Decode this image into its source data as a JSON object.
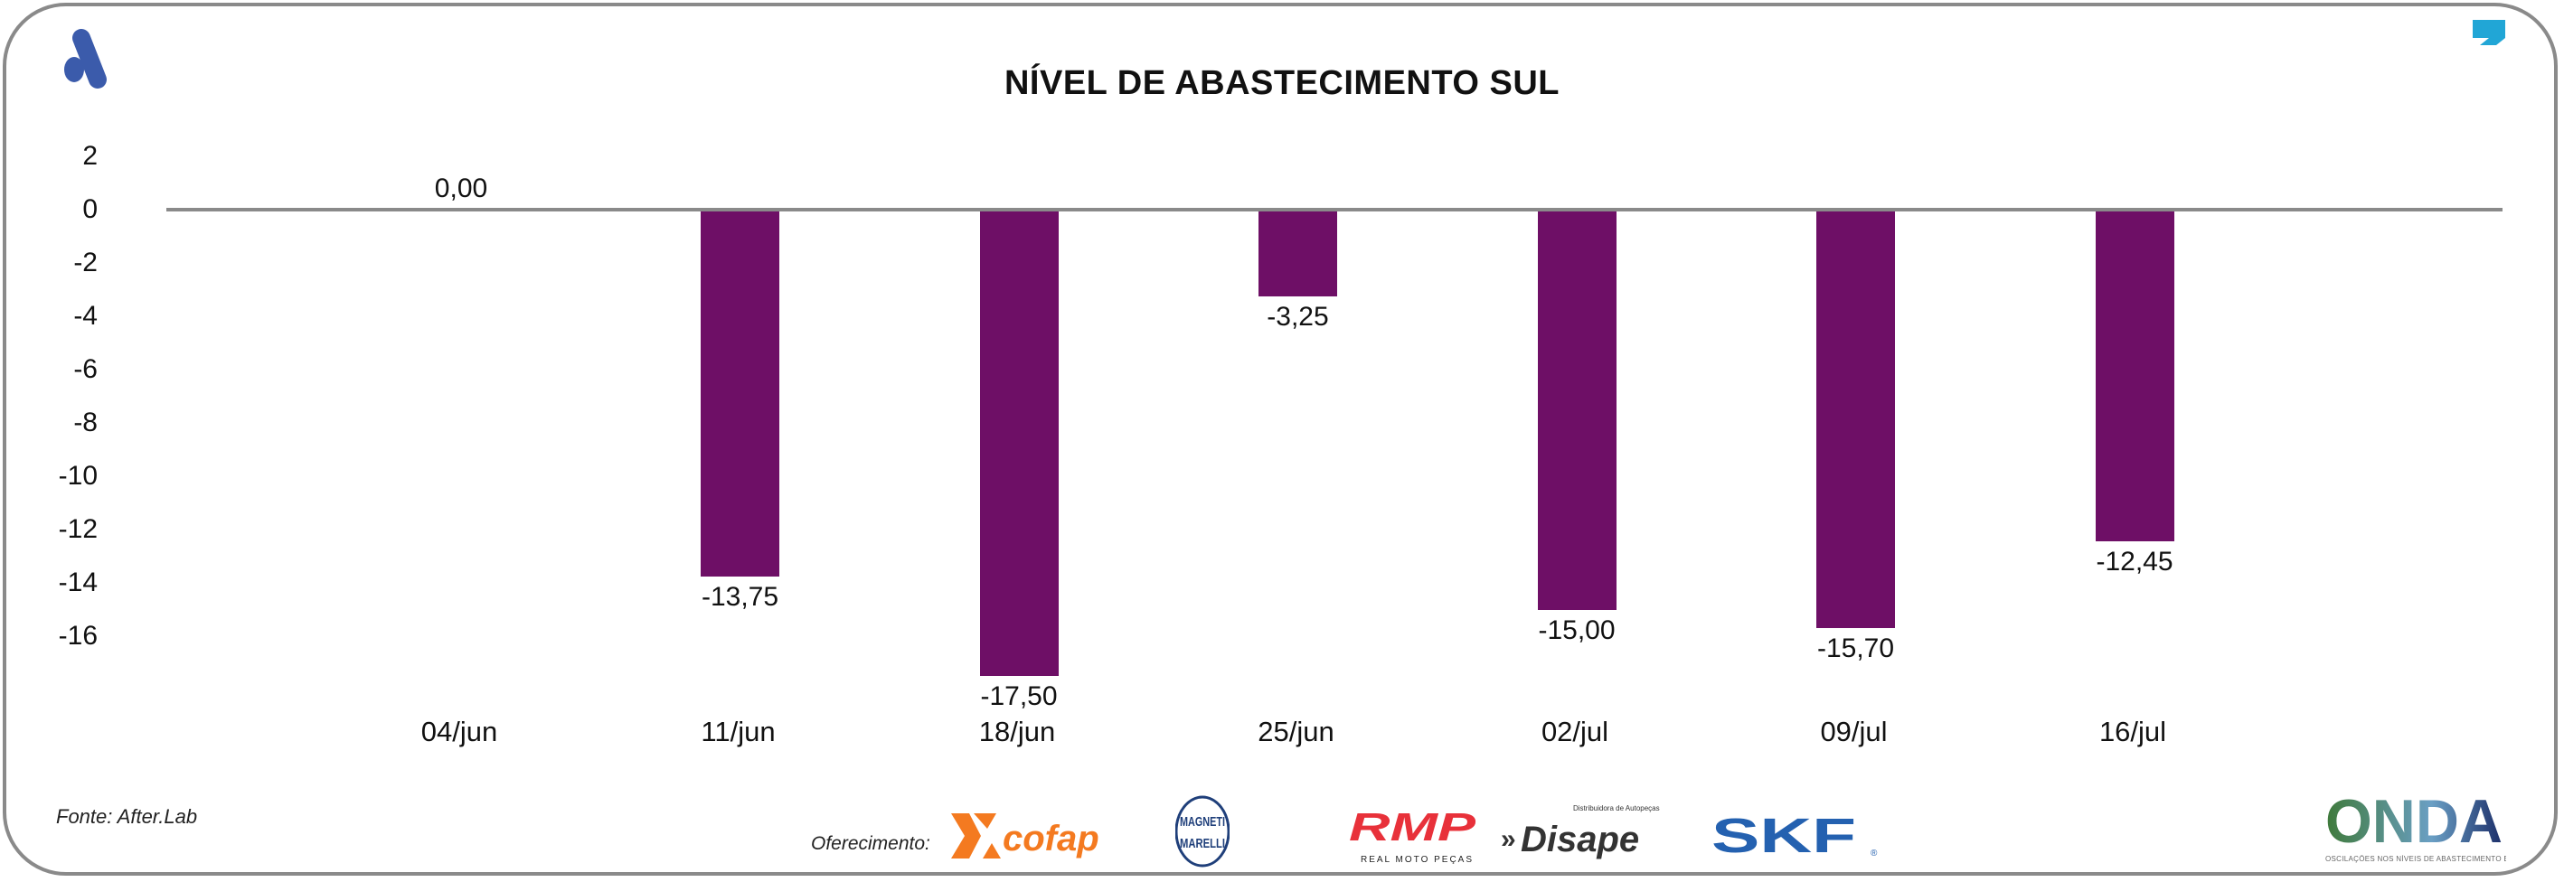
{
  "header": {
    "title": "NÍVEL DE ABASTECIMENTO SUL",
    "left_logo": "A",
    "right_logo": "comma"
  },
  "footer": {
    "source": "Fonte: After.Lab",
    "sponsor_label": "Oferecimento:",
    "sponsors": [
      "cofap",
      "MAGNETI MARELLI",
      "RMP REAL MOTO PEÇAS",
      "Disape Distribuidora de Autopeças",
      "SKF"
    ],
    "brand": "ONDA",
    "brand_tagline": "OSCILAÇÕES NOS NÍVEIS DE ABASTECIMENTO E PREÇO"
  },
  "colors": {
    "bar": "#6e0f66",
    "axis": "#8a8a8a",
    "left_logo": "#3b5bab",
    "right_logo": "#21a6d6"
  },
  "chart_data": {
    "type": "bar",
    "title": "NÍVEL DE ABASTECIMENTO SUL",
    "categories": [
      "04/jun",
      "11/jun",
      "18/jun",
      "25/jun",
      "02/jul",
      "09/jul",
      "16/jul"
    ],
    "values": [
      0.0,
      -13.75,
      -17.5,
      -3.25,
      -15.0,
      -15.7,
      -12.45
    ],
    "data_labels": [
      "0,00",
      "-13,75",
      "-17,50",
      "-3,25",
      "-15,00",
      "-15,70",
      "-12,45"
    ],
    "yticks": [
      "2",
      "0",
      "-2",
      "-4",
      "-6",
      "-8",
      "-10",
      "-12",
      "-14",
      "-16"
    ],
    "ylim": [
      -16,
      2
    ],
    "grid": false,
    "legend": "none",
    "xlabel": "",
    "ylabel": ""
  }
}
